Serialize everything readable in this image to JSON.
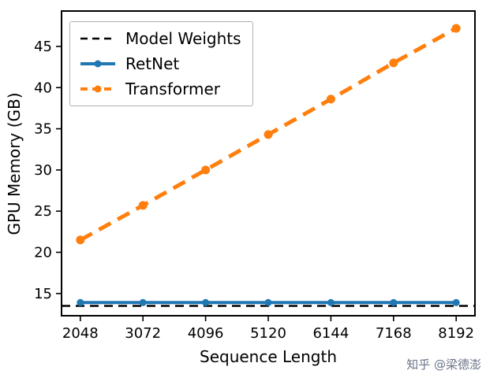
{
  "watermark": {
    "text": "知乎 @梁德澎",
    "color": "#6b7487"
  },
  "chart_data": {
    "type": "line",
    "title": "",
    "xlabel": "Sequence Length",
    "ylabel": "GPU Memory (GB)",
    "xlim": [
      1741,
      8499
    ],
    "ylim": [
      12.3,
      49.3
    ],
    "xticks": [
      2048,
      3072,
      4096,
      5120,
      6144,
      7168,
      8192
    ],
    "yticks": [
      15,
      20,
      25,
      30,
      35,
      40,
      45
    ],
    "grid": false,
    "legend_position": "upper left",
    "series": [
      {
        "name": "Model Weights",
        "x": [
          1741,
          8499
        ],
        "values": [
          13.5,
          13.5
        ],
        "color": "#000000",
        "dash": "11 7",
        "width": 2.5,
        "marker": false,
        "marker_size": 0
      },
      {
        "name": "RetNet",
        "x": [
          2048,
          3072,
          4096,
          5120,
          6144,
          7168,
          8192
        ],
        "values": [
          13.9,
          13.9,
          13.9,
          13.9,
          13.9,
          13.9,
          13.9
        ],
        "color": "#1f77b4",
        "dash": null,
        "width": 4,
        "marker": true,
        "marker_size": 4.5
      },
      {
        "name": "Transformer",
        "x": [
          2048,
          3072,
          4096,
          5120,
          6144,
          7168,
          8192
        ],
        "values": [
          21.5,
          25.7,
          30.0,
          34.3,
          38.6,
          43.0,
          47.2
        ],
        "color": "#ff7f0e",
        "dash": "17 10",
        "width": 5,
        "marker": true,
        "marker_size": 5.5
      }
    ]
  }
}
